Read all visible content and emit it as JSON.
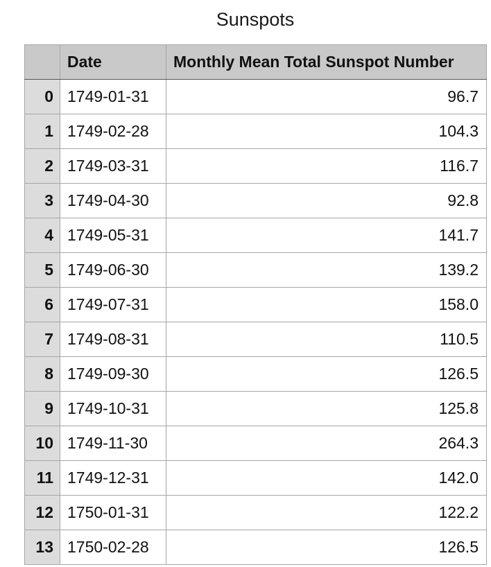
{
  "title": "Sunspots",
  "chart_data": {
    "type": "table",
    "title": "Sunspots",
    "columns": [
      "",
      "Date",
      "Monthly Mean Total Sunspot Number"
    ],
    "rows": [
      {
        "index": "0",
        "date": "1749-01-31",
        "value": "96.7"
      },
      {
        "index": "1",
        "date": "1749-02-28",
        "value": "104.3"
      },
      {
        "index": "2",
        "date": "1749-03-31",
        "value": "116.7"
      },
      {
        "index": "3",
        "date": "1749-04-30",
        "value": "92.8"
      },
      {
        "index": "4",
        "date": "1749-05-31",
        "value": "141.7"
      },
      {
        "index": "5",
        "date": "1749-06-30",
        "value": "139.2"
      },
      {
        "index": "6",
        "date": "1749-07-31",
        "value": "158.0"
      },
      {
        "index": "7",
        "date": "1749-08-31",
        "value": "110.5"
      },
      {
        "index": "8",
        "date": "1749-09-30",
        "value": "126.5"
      },
      {
        "index": "9",
        "date": "1749-10-31",
        "value": "125.8"
      },
      {
        "index": "10",
        "date": "1749-11-30",
        "value": "264.3"
      },
      {
        "index": "11",
        "date": "1749-12-31",
        "value": "142.0"
      },
      {
        "index": "12",
        "date": "1750-01-31",
        "value": "122.2"
      },
      {
        "index": "13",
        "date": "1750-02-28",
        "value": "126.5"
      }
    ]
  },
  "colors": {
    "header_background": "#c9c9c9",
    "index_background": "#dcdcdc",
    "cell_background": "#ffffff",
    "grid_line": "#a6a6a6"
  }
}
